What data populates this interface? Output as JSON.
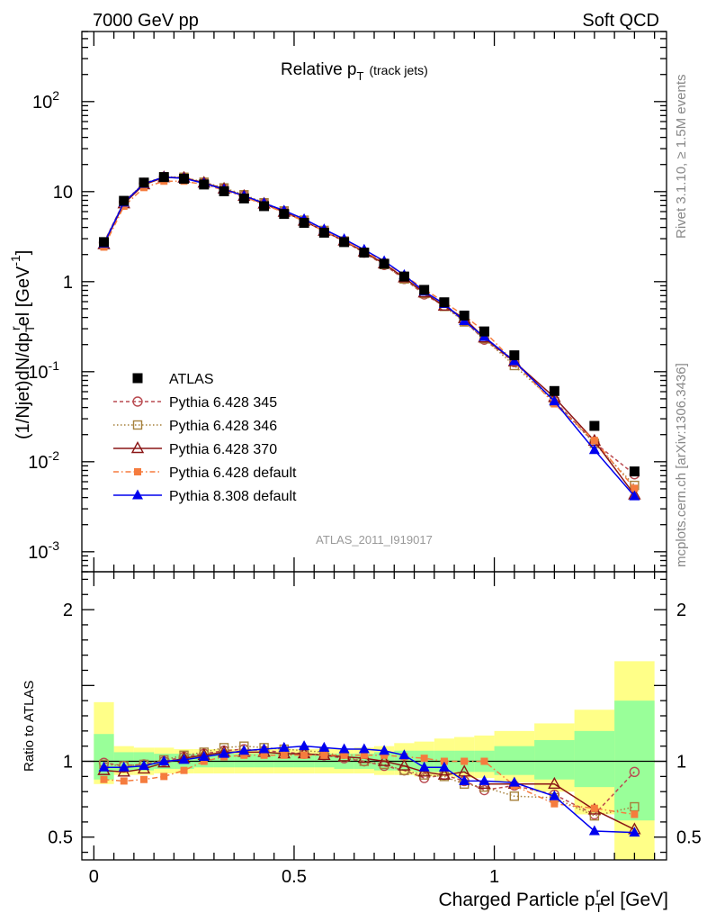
{
  "header": {
    "left": "7000 GeV pp",
    "right": "Soft QCD"
  },
  "side_texts": {
    "top": "Rivet 3.1.10, ≥ 1.5M events",
    "bottom": "mcplots.cern.ch [arXiv:1306.3436]"
  },
  "chart_data": {
    "type": "scatter",
    "title": {
      "main": "Relative p",
      "sub": "T",
      "note": "(track jets)"
    },
    "analysis_label": "ATLAS_2011_I919017",
    "xlabel": {
      "main": "Charged Particle p",
      "sub": "T",
      "sup": "r",
      "suffix": "el [GeV]"
    },
    "ylabel": {
      "t1": "(1/Njet)dN/dp",
      "sub": "T",
      "sup1": "r",
      "t2": "el [GeV",
      "sup2": "-1",
      "t3": "]"
    },
    "ratio_ylabel": "Ratio to ATLAS",
    "xlim": [
      -0.03,
      1.43
    ],
    "ylim_main": [
      0.0006,
      600
    ],
    "y_scale_main": "log",
    "ylim_ratio": [
      0.35,
      2.25
    ],
    "x_ticks": [
      {
        "v": 0,
        "label": "0"
      },
      {
        "v": 0.5,
        "label": "0.5"
      },
      {
        "v": 1,
        "label": "1"
      }
    ],
    "y_ticks_main": [
      {
        "v": 0.001,
        "base": "10",
        "exp": "-3"
      },
      {
        "v": 0.01,
        "base": "10",
        "exp": "-2"
      },
      {
        "v": 0.1,
        "base": "10",
        "exp": "-1"
      },
      {
        "v": 1,
        "base": "1",
        "exp": ""
      },
      {
        "v": 10,
        "base": "10",
        "exp": ""
      },
      {
        "v": 100,
        "base": "10",
        "exp": "2"
      }
    ],
    "y_ticks_ratio": [
      {
        "v": 0.5,
        "label": "0.5"
      },
      {
        "v": 1,
        "label": "1"
      },
      {
        "v": 2,
        "label": "2"
      }
    ],
    "legend_position": "lower-left",
    "x": [
      0.025,
      0.075,
      0.125,
      0.175,
      0.225,
      0.275,
      0.325,
      0.375,
      0.425,
      0.475,
      0.525,
      0.575,
      0.625,
      0.675,
      0.725,
      0.775,
      0.825,
      0.875,
      0.925,
      0.975,
      1.05,
      1.15,
      1.25,
      1.35
    ],
    "bin_edges": [
      0.0,
      0.05,
      0.1,
      0.15,
      0.2,
      0.25,
      0.3,
      0.35,
      0.4,
      0.45,
      0.5,
      0.55,
      0.6,
      0.65,
      0.7,
      0.75,
      0.8,
      0.85,
      0.9,
      0.95,
      1.0,
      1.1,
      1.2,
      1.3,
      1.4
    ],
    "data": {
      "name": "ATLAS",
      "values": [
        2.75,
        7.9,
        12.6,
        14.5,
        13.9,
        12.0,
        10.1,
        8.4,
        6.9,
        5.65,
        4.5,
        3.5,
        2.75,
        2.1,
        1.58,
        1.14,
        0.81,
        0.59,
        0.42,
        0.28,
        0.152,
        0.061,
        0.025,
        0.0078
      ]
    },
    "bands": {
      "inner_lo": [
        0.88,
        0.94,
        0.94,
        0.95,
        0.95,
        0.96,
        0.96,
        0.96,
        0.96,
        0.96,
        0.96,
        0.96,
        0.95,
        0.95,
        0.94,
        0.94,
        0.93,
        0.93,
        0.93,
        0.93,
        0.91,
        0.88,
        0.83,
        0.61
      ],
      "inner_hi": [
        1.18,
        1.06,
        1.06,
        1.05,
        1.05,
        1.05,
        1.05,
        1.05,
        1.05,
        1.05,
        1.05,
        1.05,
        1.05,
        1.05,
        1.06,
        1.07,
        1.07,
        1.07,
        1.07,
        1.07,
        1.1,
        1.14,
        1.2,
        1.4
      ],
      "outer_lo": [
        0.85,
        0.91,
        0.91,
        0.92,
        0.92,
        0.92,
        0.92,
        0.92,
        0.92,
        0.92,
        0.92,
        0.92,
        0.92,
        0.92,
        0.91,
        0.91,
        0.9,
        0.9,
        0.89,
        0.89,
        0.86,
        0.8,
        0.65,
        0.35
      ],
      "outer_hi": [
        1.39,
        1.1,
        1.09,
        1.09,
        1.08,
        1.08,
        1.08,
        1.08,
        1.08,
        1.08,
        1.08,
        1.08,
        1.08,
        1.09,
        1.1,
        1.12,
        1.13,
        1.15,
        1.16,
        1.17,
        1.2,
        1.25,
        1.34,
        1.66
      ]
    },
    "series": [
      {
        "name": "Pythia 6.428 345",
        "color": "#b94a50",
        "marker": "circle-open",
        "dash": "4,3",
        "values": [
          0.99,
          0.97,
          0.98,
          1.0,
          1.03,
          1.05,
          1.07,
          1.08,
          1.07,
          1.06,
          1.05,
          1.04,
          1.02,
          1.0,
          0.97,
          0.94,
          0.89,
          0.91,
          0.87,
          0.81,
          0.84,
          0.78,
          0.65,
          0.93
        ]
      },
      {
        "name": "Pythia 6.428 346",
        "color": "#a6813c",
        "marker": "square-open",
        "dash": "1.5,2.5",
        "values": [
          0.98,
          0.97,
          0.98,
          1.01,
          1.04,
          1.06,
          1.09,
          1.1,
          1.09,
          1.08,
          1.07,
          1.06,
          1.03,
          1.0,
          0.98,
          0.94,
          0.91,
          0.9,
          0.85,
          0.83,
          0.77,
          0.76,
          0.64,
          0.7
        ]
      },
      {
        "name": "Pythia 6.428 370",
        "color": "#8a1616",
        "marker": "triangle-open",
        "dash": "",
        "values": [
          0.94,
          0.93,
          0.95,
          0.99,
          1.02,
          1.04,
          1.06,
          1.06,
          1.06,
          1.05,
          1.05,
          1.04,
          1.03,
          1.02,
          1.0,
          0.97,
          0.93,
          0.91,
          0.93,
          0.85,
          0.85,
          0.85,
          0.68,
          0.55
        ]
      },
      {
        "name": "Pythia 6.428 default",
        "color": "#f57c3e",
        "marker": "square-filled",
        "dash": "6,3,1.5,3",
        "values": [
          0.88,
          0.87,
          0.88,
          0.9,
          0.94,
          1.0,
          1.03,
          1.04,
          1.04,
          1.04,
          1.04,
          1.04,
          1.04,
          1.04,
          1.04,
          1.03,
          1.02,
          1.0,
          1.0,
          1.0,
          0.84,
          0.72,
          0.69,
          0.65
        ]
      },
      {
        "name": "Pythia 8.308 default",
        "color": "#0000ee",
        "marker": "triangle-filled",
        "dash": "",
        "values": [
          0.96,
          0.96,
          0.97,
          1.0,
          1.01,
          1.03,
          1.05,
          1.07,
          1.08,
          1.09,
          1.1,
          1.09,
          1.08,
          1.08,
          1.07,
          1.04,
          0.96,
          0.96,
          0.87,
          0.87,
          0.86,
          0.77,
          0.54,
          0.53
        ]
      }
    ]
  }
}
